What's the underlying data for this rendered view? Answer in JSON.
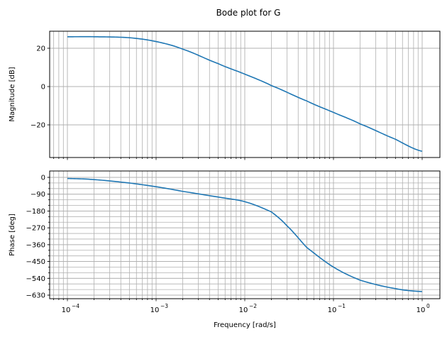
{
  "title": "Bode plot for G",
  "colors": {
    "line": "#1f77b4",
    "grid": "#b0b0b0",
    "frame": "#000000"
  },
  "chart_data": [
    {
      "type": "line",
      "name": "magnitude",
      "title": "Bode plot for G",
      "xlabel": "",
      "ylabel": "Magnitude [dB]",
      "xscale": "log",
      "xlim": [
        6.3e-05,
        1.6
      ],
      "ylim": [
        -37.5,
        29
      ],
      "yticks": [
        -20,
        0,
        20
      ],
      "ytick_labels": [
        "−20",
        "0",
        "20"
      ],
      "grid": true,
      "x": [
        0.0001,
        0.0002,
        0.0005,
        0.001,
        0.002,
        0.005,
        0.01,
        0.02,
        0.05,
        0.1,
        0.2,
        0.5,
        1.0
      ],
      "series": [
        {
          "name": "G",
          "values": [
            26,
            26,
            25.5,
            23.5,
            19.5,
            12,
            6.5,
            0.5,
            -7.5,
            -13.5,
            -19.5,
            -27.5,
            -33.8
          ]
        }
      ]
    },
    {
      "type": "line",
      "name": "phase",
      "title": "",
      "xlabel": "Frequency [rad/s]",
      "ylabel": "Phase [deg]",
      "xscale": "log",
      "xlim": [
        6.3e-05,
        1.6
      ],
      "ylim": [
        -645,
        20
      ],
      "xticks": [
        0.0001,
        0.001,
        0.01,
        0.1,
        1
      ],
      "xtick_labels": [
        [
          "10",
          "−4"
        ],
        [
          "10",
          "−3"
        ],
        [
          "10",
          "−2"
        ],
        [
          "10",
          "−1"
        ],
        [
          "10",
          "0"
        ]
      ],
      "yticks": [
        0,
        -90,
        -180,
        -270,
        -360,
        -450,
        -540,
        -630
      ],
      "ytick_labels": [
        "0",
        "−90",
        "−180",
        "−270",
        "−360",
        "−450",
        "−540",
        "−630"
      ],
      "yminor_step": 30,
      "grid": true,
      "x": [
        0.0001,
        0.0002,
        0.0005,
        0.001,
        0.002,
        0.005,
        0.01,
        0.02,
        0.03,
        0.05,
        0.1,
        0.2,
        0.5,
        1.0
      ],
      "series": [
        {
          "name": "G",
          "values": [
            -6,
            -12,
            -30,
            -50,
            -75,
            -105,
            -130,
            -185,
            -260,
            -375,
            -480,
            -550,
            -595,
            -611
          ]
        }
      ]
    }
  ]
}
